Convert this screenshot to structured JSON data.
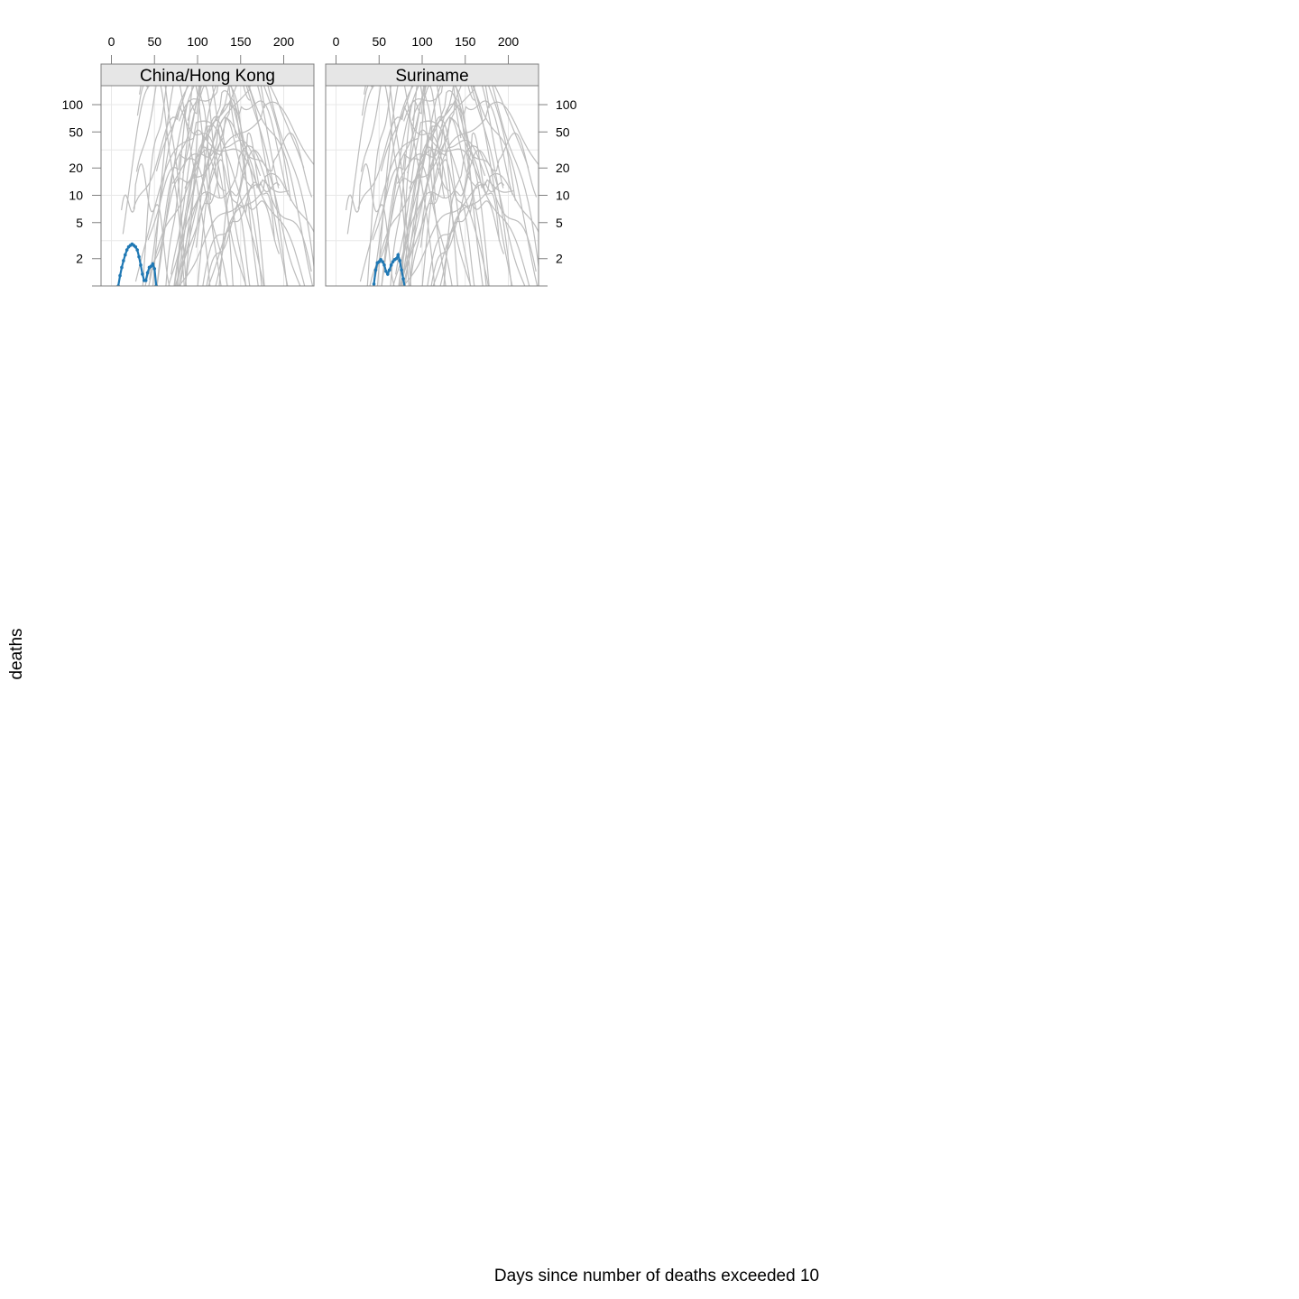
{
  "chart_data": {
    "type": "line",
    "layout": "trellis",
    "xlabel": "Days since number of deaths exceeded 10",
    "ylabel": "deaths",
    "y_scale": "log",
    "xlim": [
      -12,
      236
    ],
    "ylim": [
      1,
      140
    ],
    "x_ticks": [
      0,
      50,
      100,
      150,
      200
    ],
    "y_ticks": [
      2,
      5,
      10,
      20,
      50,
      100
    ],
    "grid": true,
    "colors": {
      "highlight": "#1f78b4",
      "background_lines": "#bdbdbd",
      "strip": "#e6e6e6",
      "panel_border": "#808080",
      "grid": "#e8e8e8"
    },
    "panels": [
      {
        "label": "China/Hong Kong",
        "series": [
          {
            "x": [
              8,
              10,
              12,
              14,
              16,
              18,
              20,
              22,
              24,
              26,
              28,
              30,
              32,
              34,
              36,
              38,
              40,
              42,
              44,
              46,
              48,
              50,
              52
            ],
            "values": [
              1.0,
              1.3,
              1.6,
              1.9,
              2.2,
              2.5,
              2.7,
              2.8,
              2.9,
              2.8,
              2.7,
              2.5,
              2.1,
              1.7,
              1.35,
              1.15,
              1.15,
              1.4,
              1.6,
              1.65,
              1.75,
              1.55,
              1.0
            ]
          }
        ]
      },
      {
        "label": "Suriname",
        "series": [
          {
            "x": [
              44,
              46,
              48,
              50,
              52,
              54,
              56,
              58,
              60,
              62,
              64,
              66,
              68,
              70,
              72,
              74,
              76,
              78,
              80
            ],
            "values": [
              1.05,
              1.5,
              1.8,
              1.85,
              1.95,
              1.85,
              1.7,
              1.45,
              1.35,
              1.5,
              1.7,
              1.85,
              1.95,
              2.0,
              2.2,
              1.9,
              1.5,
              1.2,
              0.95
            ]
          }
        ]
      }
    ]
  }
}
